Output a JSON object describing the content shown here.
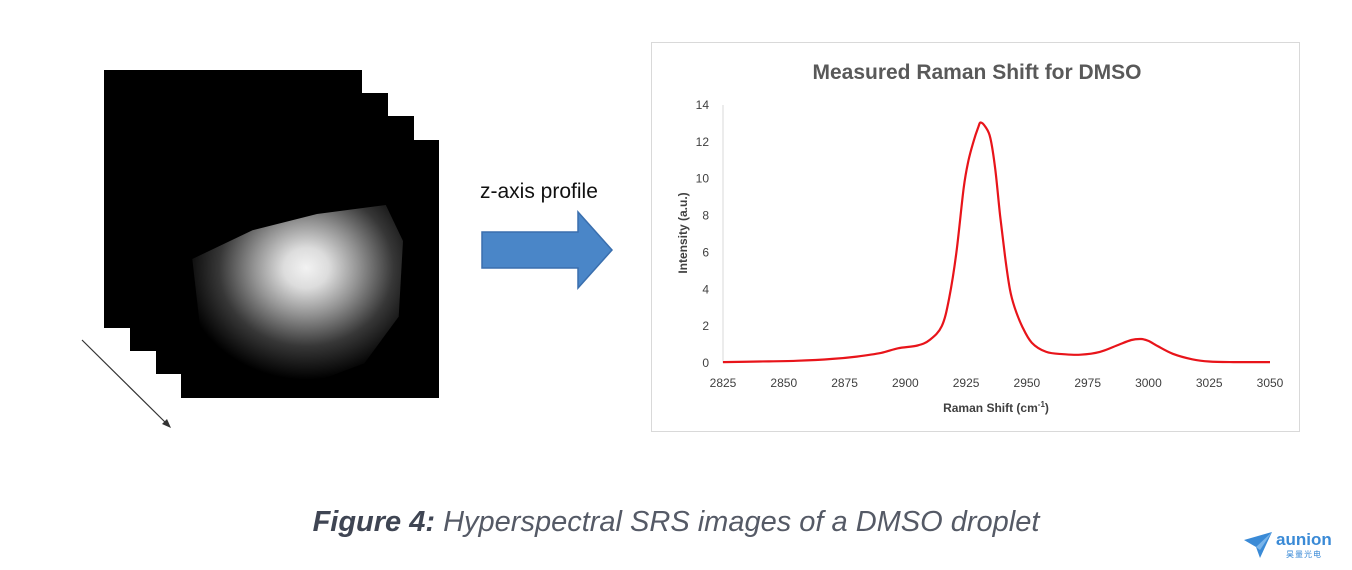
{
  "left_panel": {
    "stack_cards": 4
  },
  "arrow": {
    "label": "z-axis profile",
    "color": "#4a86c8"
  },
  "chart_data": {
    "type": "line",
    "title": "Measured Raman Shift for DMSO",
    "xlabel": "Raman Shift (cm",
    "xlabel_sup": "-1",
    "xlabel_end": ")",
    "ylabel": "Intensity (a.u.)",
    "xlim": [
      2825,
      3050
    ],
    "ylim": [
      0,
      14
    ],
    "x_ticks": [
      "2825",
      "2850",
      "2875",
      "2900",
      "2925",
      "2950",
      "2975",
      "3000",
      "3025",
      "3050"
    ],
    "y_ticks": [
      "0",
      "2",
      "4",
      "6",
      "8",
      "10",
      "12",
      "14"
    ],
    "grid": false,
    "legend": "none",
    "line_color": "#e8141a",
    "series": [
      {
        "x": [
          2825,
          2840,
          2855,
          2870,
          2880,
          2890,
          2897,
          2905,
          2910,
          2915,
          2918,
          2921,
          2924,
          2926,
          2928,
          2930,
          2931,
          2933,
          2935,
          2937,
          2939,
          2941,
          2943,
          2945,
          2948,
          2952,
          2958,
          2965,
          2972,
          2980,
          2987,
          2993,
          2997,
          3000,
          3004,
          3010,
          3018,
          3025,
          3035,
          3050
        ],
        "y": [
          0.05,
          0.08,
          0.12,
          0.22,
          0.35,
          0.55,
          0.8,
          0.95,
          1.25,
          2.0,
          3.5,
          6.0,
          9.5,
          11.0,
          12.0,
          12.8,
          13.05,
          12.8,
          12.2,
          10.5,
          8.0,
          5.8,
          4.0,
          3.0,
          2.0,
          1.1,
          0.6,
          0.48,
          0.45,
          0.6,
          0.95,
          1.25,
          1.3,
          1.2,
          0.9,
          0.5,
          0.2,
          0.08,
          0.05,
          0.05
        ]
      }
    ]
  },
  "caption": {
    "bold": "Figure 4:",
    "text": " Hyperspectral SRS images of a DMSO droplet"
  },
  "logo": {
    "name": "aunion",
    "sub": "昊量光电"
  }
}
